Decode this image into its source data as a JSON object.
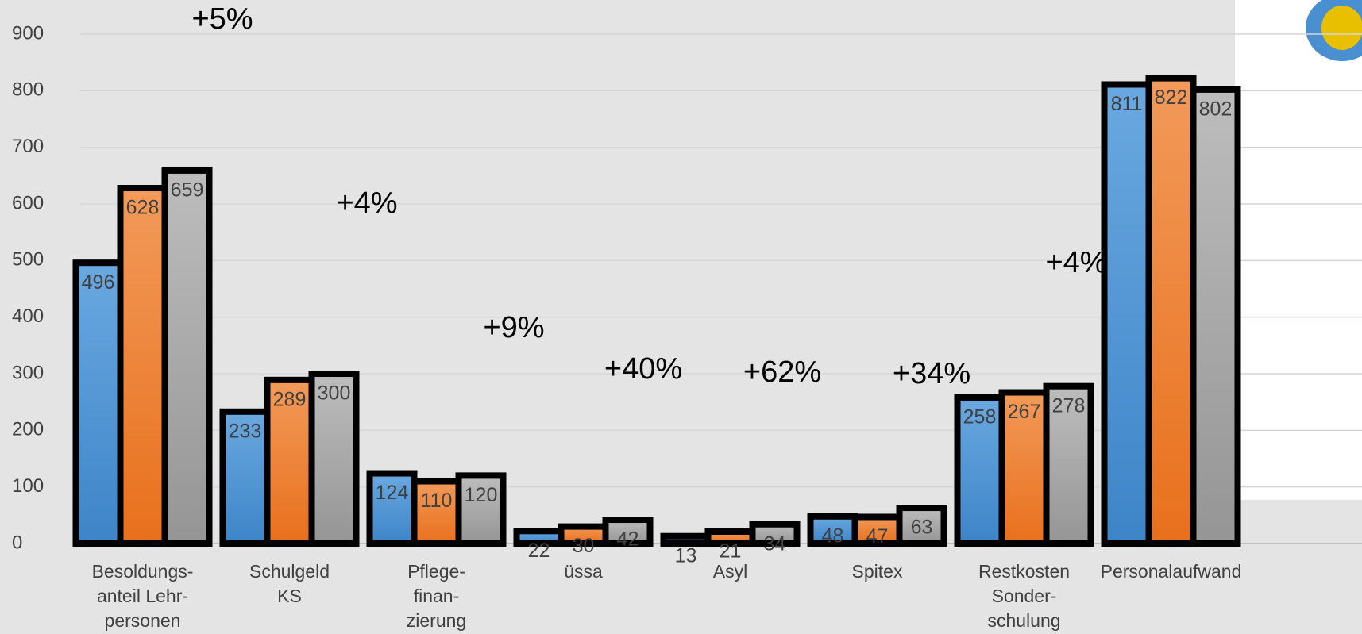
{
  "chart_data": {
    "type": "bar",
    "categories": [
      [
        "Besoldungs-",
        "anteil Lehr-",
        "personen"
      ],
      [
        "Schulgeld",
        "KS"
      ],
      [
        "Pflege-",
        "finan-",
        "zierung"
      ],
      [
        "üssa"
      ],
      [
        "Asyl"
      ],
      [
        "Spitex"
      ],
      [
        "Restkosten",
        "Sonder-",
        "schulung"
      ],
      [
        "Personalaufwand"
      ]
    ],
    "series": [
      {
        "color": "#4a8fd4",
        "values": [
          496,
          233,
          124,
          22,
          13,
          48,
          258,
          811
        ]
      },
      {
        "color": "#ee7a2a",
        "values": [
          628,
          289,
          110,
          30,
          21,
          47,
          267,
          822
        ]
      },
      {
        "color": "#a5a5a5",
        "values": [
          659,
          300,
          120,
          42,
          34,
          63,
          278,
          802
        ]
      }
    ],
    "annotations": [
      "+5%",
      "+4%",
      "+9%",
      "+40%",
      "+62%",
      "+34%",
      "+4%"
    ],
    "ylim": [
      0,
      900
    ],
    "yticks": [
      0,
      100,
      200,
      300,
      400,
      500,
      600,
      700,
      800,
      900
    ],
    "grid": true
  }
}
